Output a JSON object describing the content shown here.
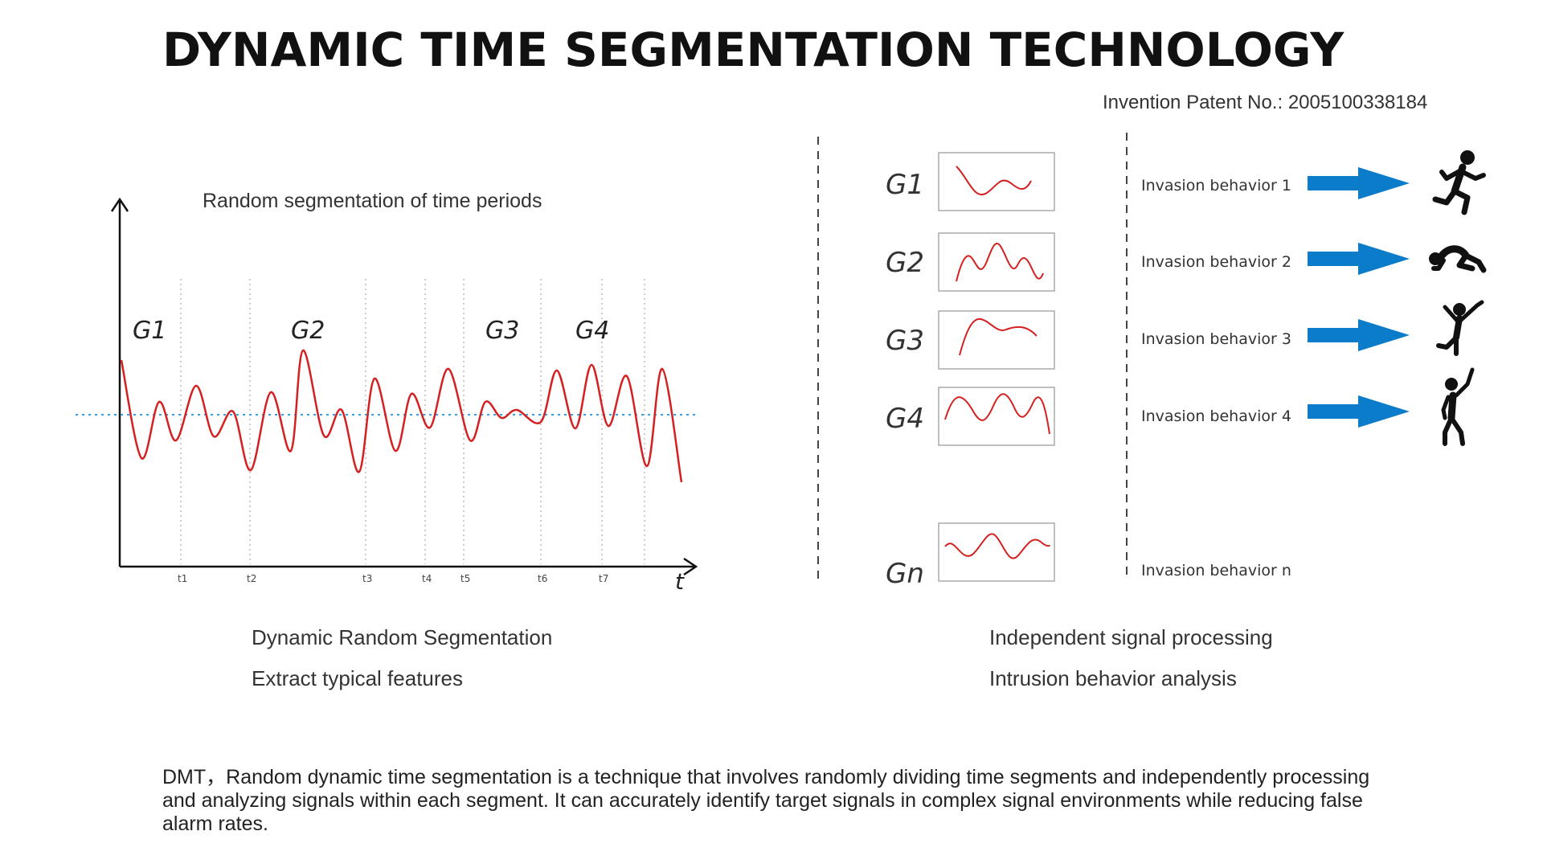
{
  "title": "DYNAMIC TIME SEGMENTATION TECHNOLOGY",
  "patent": "Invention Patent No.: 2005100338184",
  "left_panel": {
    "chart_title": "Random segmentation of time periods",
    "x_axis_label": "t",
    "time_ticks": [
      "t1",
      "t2",
      "t3",
      "t4",
      "t5",
      "t6",
      "t7"
    ],
    "segment_labels": [
      "G1",
      "G2",
      "G3",
      "G4"
    ],
    "captions": [
      "Dynamic Random Segmentation",
      "Extract typical features"
    ]
  },
  "right_panel": {
    "groups": [
      {
        "label": "G1",
        "behavior": "Invasion behavior 1",
        "icon": "running-person-icon"
      },
      {
        "label": "G2",
        "behavior": "Invasion behavior 2",
        "icon": "crawling-person-icon"
      },
      {
        "label": "G3",
        "behavior": "Invasion behavior 3",
        "icon": "climbing-person-icon"
      },
      {
        "label": "G4",
        "behavior": "Invasion behavior 4",
        "icon": "waving-person-icon"
      },
      {
        "label": "Gn",
        "behavior": "Invasion behavior n",
        "icon": ""
      }
    ],
    "captions": [
      "Independent signal processing",
      "Intrusion behavior analysis"
    ]
  },
  "description": "DMT，Random dynamic time segmentation is a technique that involves randomly dividing time segments and independently processing and analyzing signals within each segment. It can accurately identify target signals in complex signal environments while reducing false alarm rates.",
  "colors": {
    "signal": "#d42020",
    "baseline": "#3aa0dc",
    "arrow": "#0a7cc9"
  }
}
